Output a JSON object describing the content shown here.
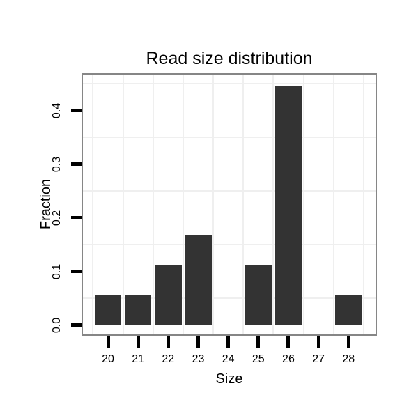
{
  "chart_data": {
    "type": "bar",
    "title": "Read size distribution",
    "xlabel": "Size",
    "ylabel": "Fraction",
    "categories": [
      "20",
      "21",
      "22",
      "23",
      "24",
      "25",
      "26",
      "27",
      "28"
    ],
    "values": [
      0.0556,
      0.0556,
      0.1111,
      0.1667,
      0,
      0.1111,
      0.4444,
      0,
      0.0556
    ],
    "y_tick_labels": [
      "0.0",
      "0.1",
      "0.2",
      "0.3",
      "0.4"
    ],
    "y_tick_values": [
      0,
      0.1,
      0.2,
      0.3,
      0.4
    ],
    "ylim": [
      -0.0175,
      0.467
    ],
    "grid": "faint gridlines midway between ticks, horizontal at 0.05 steps offset",
    "legend": "none",
    "colors": {
      "bar": "#333333",
      "tick_mark": "#000000",
      "text": "#000000",
      "panel_border": "#868686",
      "gridline": "#efefef",
      "background": "#ffffff"
    }
  }
}
